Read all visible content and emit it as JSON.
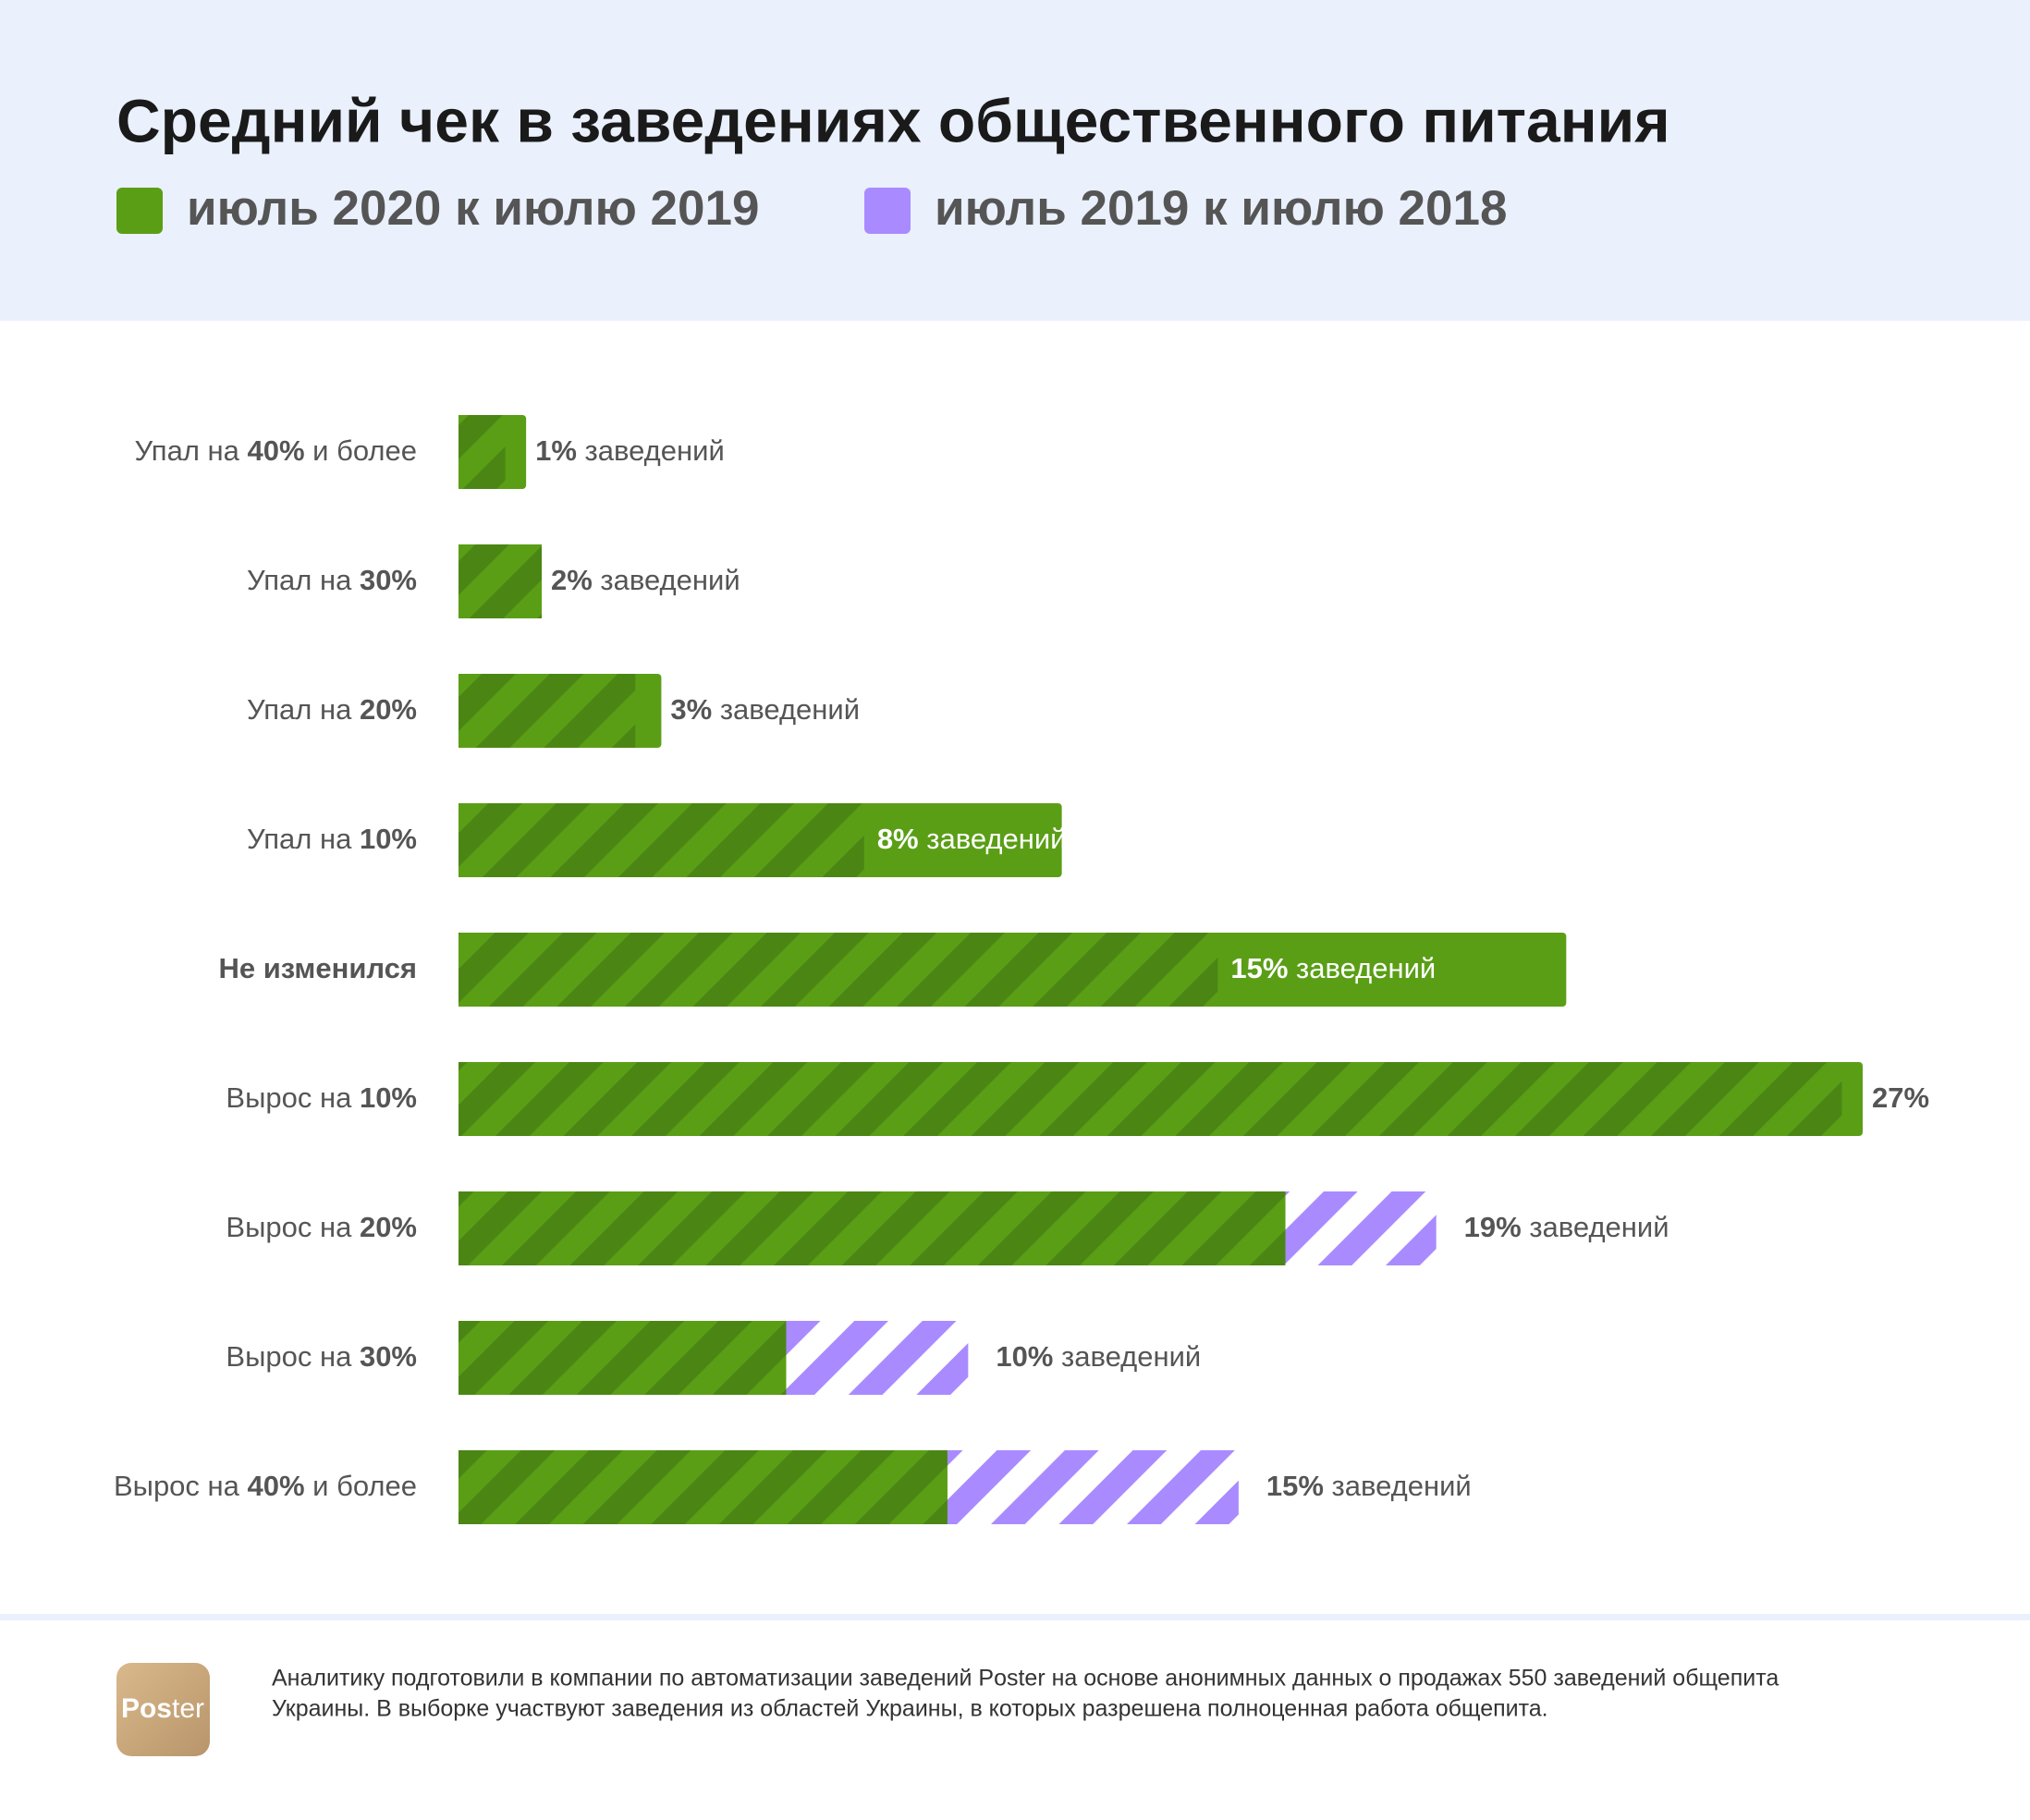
{
  "chart_data": {
    "type": "bar",
    "title": "Средний чек в заведениях общественного питания",
    "categories": [
      "Упал на 40% и более",
      "Упал на 30%",
      "Упал на 20%",
      "Упал на 10%",
      "Не изменился",
      "Вырос на 10%",
      "Вырос на 20%",
      "Вырос на 30%",
      "Вырос на 40% и более"
    ],
    "series": [
      {
        "name": "июль 2020 к июлю 2019",
        "color": "#5a9e16",
        "values": [
          1.3,
          1.6,
          3.9,
          11.6,
          21.3,
          27,
          15.9,
          6.3,
          9.4
        ]
      },
      {
        "name": "июль 2019 к июлю 2018",
        "color": "#a98bff",
        "values": [
          0.9,
          1.6,
          3.4,
          7.8,
          14.6,
          26.6,
          18.8,
          9.8,
          15
        ],
        "value_labels": [
          "1% заведений",
          "2% заведений",
          "3% заведений",
          "8% заведений",
          "15% заведений",
          "27%",
          "19% заведений",
          "10% заведений",
          "15% заведений"
        ]
      }
    ],
    "xlim": [
      0,
      27
    ]
  },
  "footer": {
    "logo": "Poster",
    "note": [
      "Аналитику подготовили в компании по автоматизации заведений Poster на основе анонимных данных о продажах 550 заведений общепита",
      "Украины. В выборке участвуют заведения из областей Украины, в которых разрешена полноценная работа общепита."
    ]
  }
}
